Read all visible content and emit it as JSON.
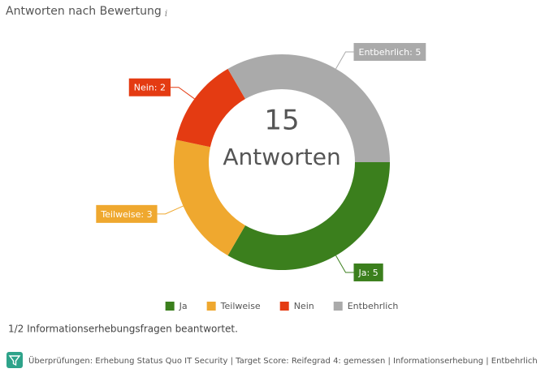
{
  "chart_data": {
    "type": "donut",
    "title": "Antworten nach Bewertung",
    "title_icon": "i",
    "center_value": 15,
    "center_label": "Antworten",
    "categories": [
      "Ja",
      "Teilweise",
      "Nein",
      "Entbehrlich"
    ],
    "values": [
      5,
      3,
      2,
      5
    ],
    "value_labels": [
      "Ja: 5",
      "Teilweise: 3",
      "Nein: 2",
      "Entbehrlich: 5"
    ],
    "colors": [
      "#3b7f1d",
      "#efa82f",
      "#e43b12",
      "#aaaaaa"
    ],
    "legend": "bottom"
  },
  "footer": {
    "progress": "1/2 Informationserhebungsfragen beantwortet.",
    "filter": "Überprüfungen: Erhebung Status Quo IT Security | Target Score: Reifegrad 4: gemessen | Informationserhebung | Entbehrlich"
  }
}
